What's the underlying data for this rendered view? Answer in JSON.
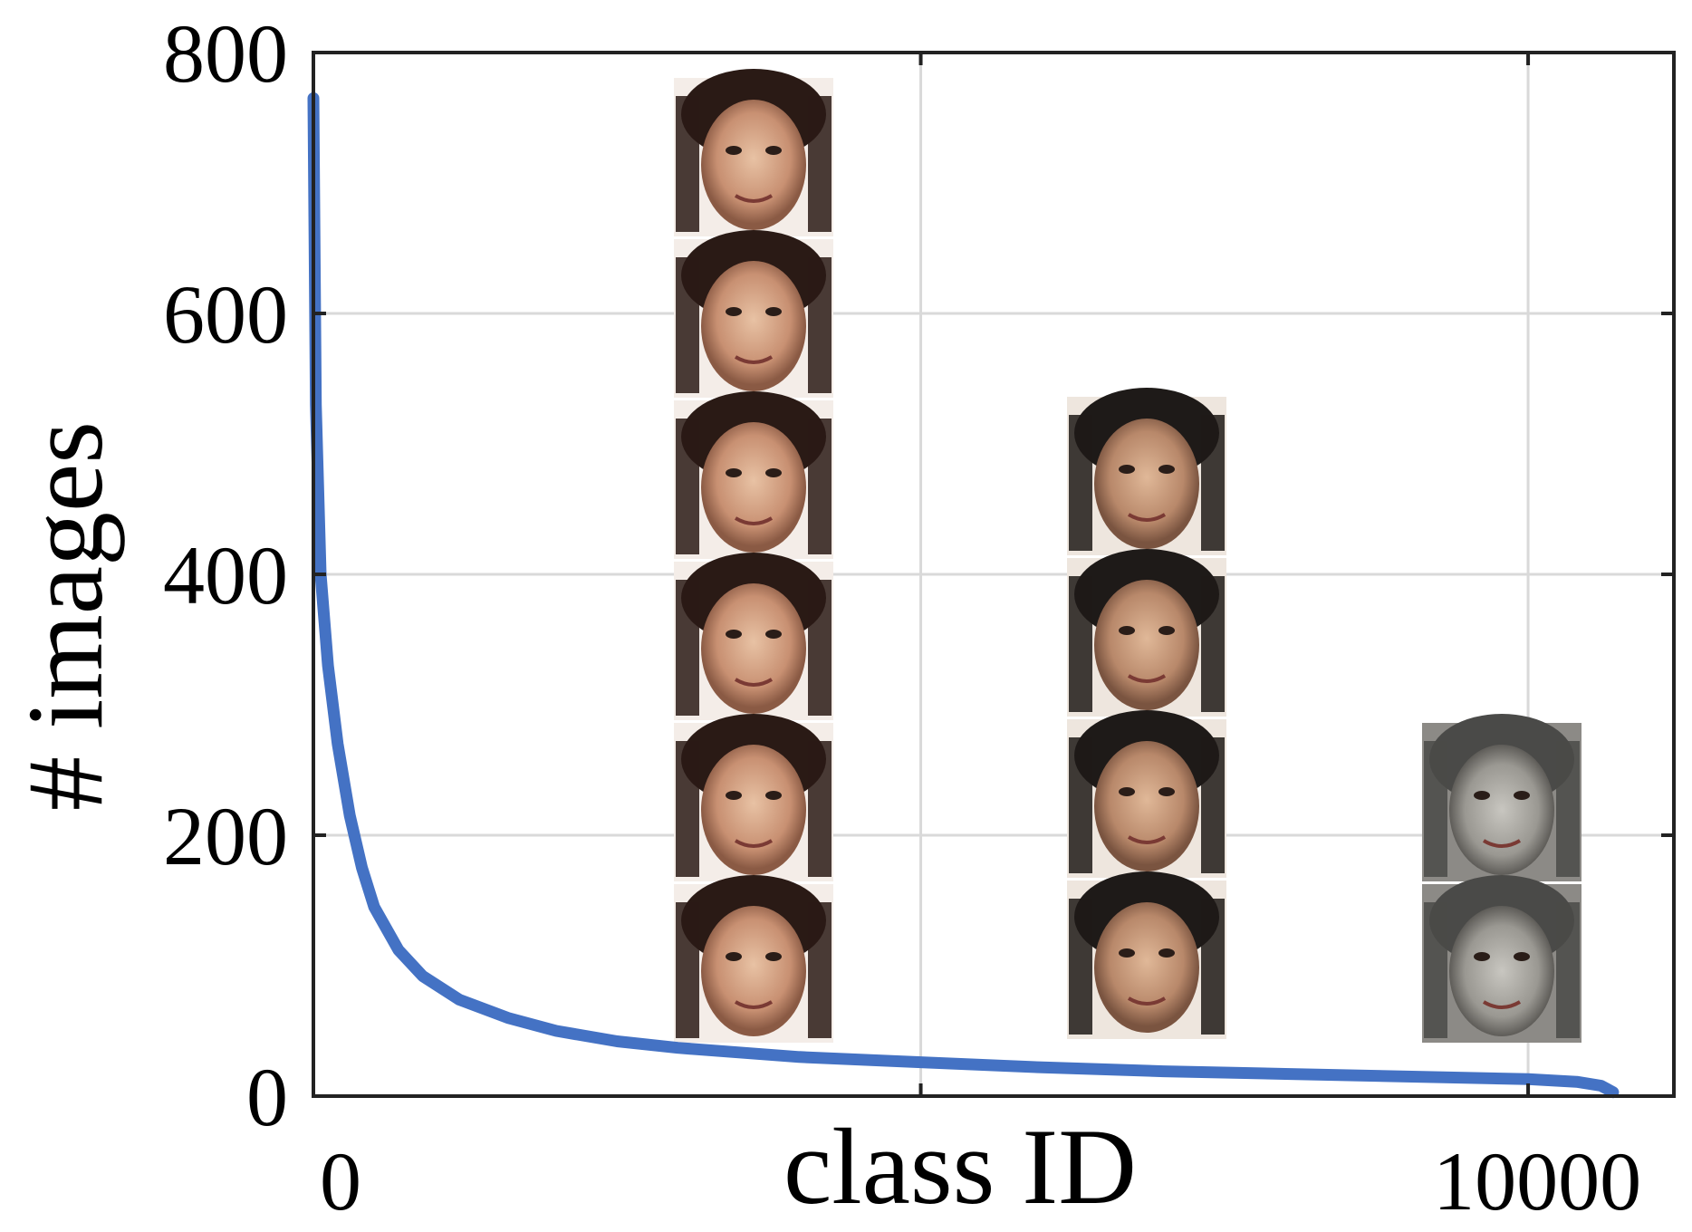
{
  "chart_data": {
    "type": "line",
    "xlabel": "class ID",
    "ylabel": "# images",
    "xlim": [
      0,
      11200
    ],
    "ylim": [
      0,
      800
    ],
    "x_ticks": [
      {
        "value": 0,
        "label": "0"
      },
      {
        "value": 10000,
        "label": "10000"
      }
    ],
    "x_grid": [
      5000,
      10000
    ],
    "y_ticks": [
      {
        "value": 0,
        "label": "0"
      },
      {
        "value": 200,
        "label": "200"
      },
      {
        "value": 400,
        "label": "400"
      },
      {
        "value": 600,
        "label": "600"
      },
      {
        "value": 800,
        "label": "800"
      }
    ],
    "grid": true,
    "line_color": "#4472c4",
    "series": [
      {
        "x": [
          0,
          20,
          60,
          120,
          200,
          300,
          400,
          500,
          700,
          900,
          1200,
          1600,
          2000,
          2500,
          3000,
          4000,
          5000,
          6000,
          7000,
          8000,
          9000,
          10000,
          10400,
          10600,
          10700
        ],
        "values": [
          765,
          530,
          400,
          330,
          270,
          215,
          175,
          145,
          112,
          92,
          74,
          60,
          50,
          42,
          37,
          30,
          26,
          22,
          19,
          17,
          15,
          13,
          11,
          8,
          3
        ]
      }
    ],
    "inset_images": [
      {
        "name": "woman-face-column",
        "faces": 6,
        "palette": [
          "#cf9e80",
          "#2a1a15",
          "#6b4a3a"
        ]
      },
      {
        "name": "man-face-column",
        "faces": 4,
        "palette": [
          "#c79a78",
          "#1e1a18",
          "#5a4a40"
        ]
      },
      {
        "name": "soldier-face-column",
        "faces": 2,
        "palette": [
          "#a8a8a4",
          "#4a4a48",
          "#7a7a76"
        ]
      }
    ]
  }
}
